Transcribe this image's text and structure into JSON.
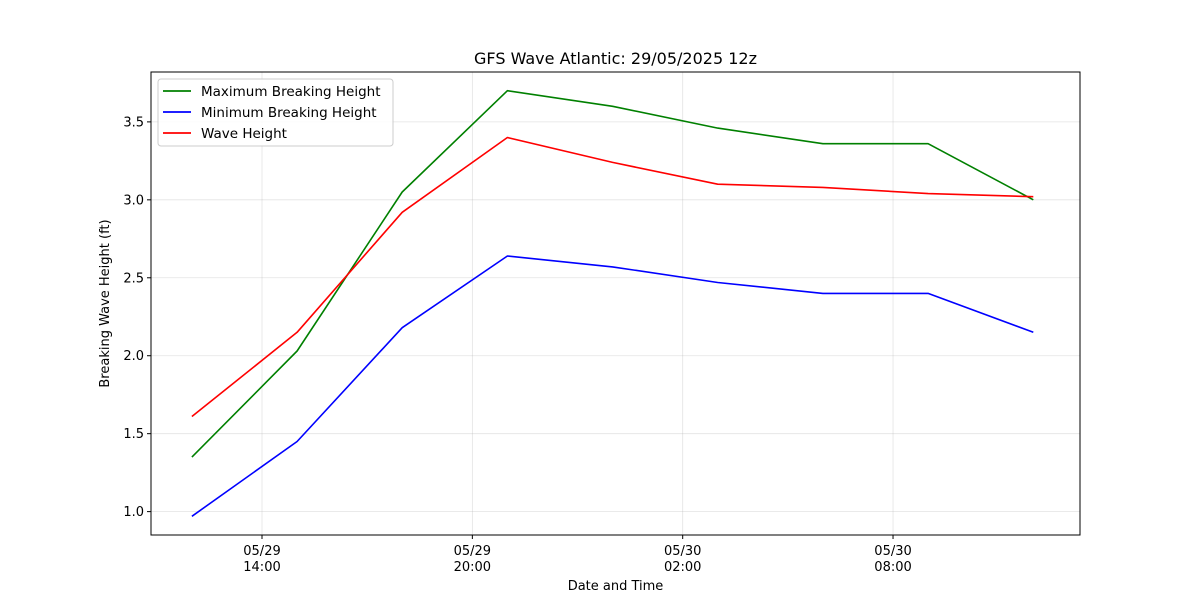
{
  "chart_data": {
    "type": "line",
    "title": "GFS Wave Atlantic: 29/05/2025 12z",
    "xlabel": "Date and Time",
    "ylabel": "Breaking Wave Height (ft)",
    "x": [
      "05/29 12:00",
      "05/29 15:00",
      "05/29 18:00",
      "05/29 21:00",
      "05/30 00:00",
      "05/30 03:00",
      "05/30 06:00",
      "05/30 09:00",
      "05/30 12:00"
    ],
    "xticks": [
      {
        "date": "05/29",
        "time": "14:00",
        "hours": 2
      },
      {
        "date": "05/29",
        "time": "20:00",
        "hours": 8
      },
      {
        "date": "05/30",
        "time": "02:00",
        "hours": 14
      },
      {
        "date": "05/30",
        "time": "08:00",
        "hours": 20
      }
    ],
    "xlim": [
      "05/29 10:50",
      "05/30 13:20"
    ],
    "ylim": [
      0.85,
      3.82
    ],
    "yticks": [
      "1.0",
      "1.5",
      "2.0",
      "2.5",
      "3.0",
      "3.5"
    ],
    "grid": true,
    "legend_position": "upper-left",
    "series": [
      {
        "name": "Maximum Breaking Height",
        "color": "#008000",
        "values": [
          1.35,
          2.03,
          3.05,
          3.7,
          3.6,
          3.46,
          3.36,
          3.36,
          3.0
        ]
      },
      {
        "name": "Minimum Breaking Height",
        "color": "#0000ff",
        "values": [
          0.97,
          1.45,
          2.18,
          2.64,
          2.57,
          2.47,
          2.4,
          2.4,
          2.15
        ]
      },
      {
        "name": "Wave Height",
        "color": "#ff0000",
        "values": [
          1.61,
          2.15,
          2.92,
          3.4,
          3.24,
          3.1,
          3.08,
          3.04,
          3.02
        ]
      }
    ]
  }
}
